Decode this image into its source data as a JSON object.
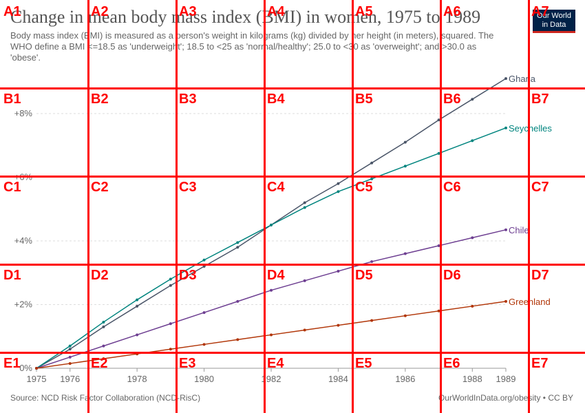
{
  "title": "Change in mean body mass index (BMI) in women, 1975 to 1989",
  "subtitle": "Body mass index (BMI) is measured as a person's weight in kilograms (kg) divided by her height (in meters), squared. The WHO define a BMI <=18.5 as 'underweight'; 18.5 to <25 as 'normal/healthy'; 25.0 to <30 as 'overweight'; and >30.0 as 'obese'.",
  "logo": {
    "line1": "Our World",
    "line2": "in Data"
  },
  "source": "Source: NCD Risk Factor Collaboration (NCD-RisC)",
  "credit": "OurWorldInData.org/obesity • CC BY",
  "colors": {
    "ghana": "#4a5568",
    "seychelles": "#00847e",
    "chile": "#6d3e91",
    "greenland": "#b13507",
    "grid_overlay": "#ff0000"
  },
  "grid_overlay": {
    "columns": [
      "1",
      "2",
      "3",
      "4",
      "5",
      "6",
      "7"
    ],
    "rows": [
      "A",
      "B",
      "C",
      "D",
      "E"
    ]
  },
  "chart_data": {
    "type": "line",
    "title": "Change in mean body mass index (BMI) in women, 1975 to 1989",
    "x": [
      1975,
      1976,
      1977,
      1978,
      1979,
      1980,
      1981,
      1982,
      1983,
      1984,
      1985,
      1986,
      1987,
      1988,
      1989
    ],
    "x_tick_labels": [
      "1975",
      "1976",
      "1978",
      "1980",
      "1982",
      "1984",
      "1986",
      "1988",
      "1989"
    ],
    "x_ticks": [
      1975,
      1976,
      1978,
      1980,
      1982,
      1984,
      1986,
      1988,
      1989
    ],
    "y_tick_labels": [
      "0%",
      "+2%",
      "+4%",
      "+6%",
      "+8%"
    ],
    "y_ticks": [
      0,
      2,
      4,
      6,
      8
    ],
    "ylim": [
      0,
      8.5
    ],
    "xlim": [
      1975,
      1989
    ],
    "grid": "horizontal dashed",
    "legend": "end-of-line labels",
    "series": [
      {
        "name": "Ghana",
        "color": "#4a5568",
        "values": [
          0,
          0.6,
          1.3,
          1.95,
          2.6,
          3.2,
          3.8,
          4.5,
          5.2,
          5.8,
          6.45,
          7.1,
          7.8,
          8.45,
          9.1
        ]
      },
      {
        "name": "Seychelles",
        "color": "#00847e",
        "values": [
          0,
          0.7,
          1.45,
          2.15,
          2.8,
          3.4,
          3.95,
          4.5,
          5.05,
          5.55,
          5.95,
          6.35,
          6.75,
          7.15,
          7.55
        ]
      },
      {
        "name": "Chile",
        "color": "#6d3e91",
        "values": [
          0,
          0.35,
          0.7,
          1.05,
          1.4,
          1.75,
          2.1,
          2.45,
          2.75,
          3.05,
          3.35,
          3.6,
          3.85,
          4.1,
          4.35
        ]
      },
      {
        "name": "Greenland",
        "color": "#b13507",
        "values": [
          0,
          0.15,
          0.3,
          0.45,
          0.6,
          0.75,
          0.9,
          1.05,
          1.2,
          1.35,
          1.5,
          1.65,
          1.8,
          1.95,
          2.1
        ]
      }
    ]
  }
}
